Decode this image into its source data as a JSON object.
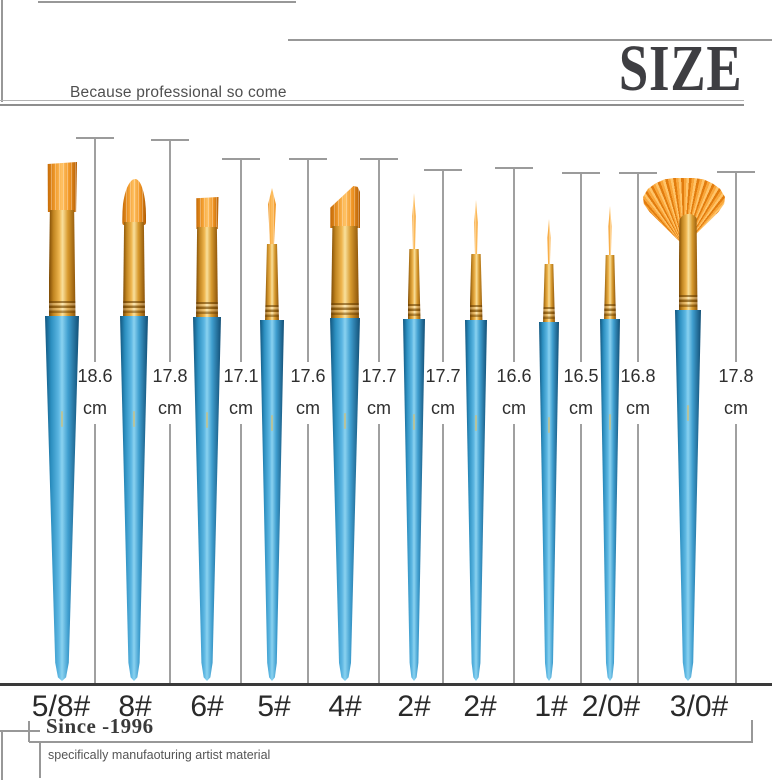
{
  "page": {
    "title": "SIZE",
    "tagline": "Because professional so come"
  },
  "measurement": {
    "unit": "cm"
  },
  "brushes": [
    {
      "label": "5/8#",
      "size_cm": "18.6",
      "tip_shape": "flat-wash"
    },
    {
      "label": "8#",
      "size_cm": "17.8",
      "tip_shape": "filbert"
    },
    {
      "label": "6#",
      "size_cm": "17.1",
      "tip_shape": "flat-bright"
    },
    {
      "label": "5#",
      "size_cm": "17.6",
      "tip_shape": "round-pointed"
    },
    {
      "label": "4#",
      "size_cm": "17.7",
      "tip_shape": "angled"
    },
    {
      "label": "2#",
      "size_cm": "17.7",
      "tip_shape": "round-small"
    },
    {
      "label": "2#",
      "size_cm": "16.6",
      "tip_shape": "round-small"
    },
    {
      "label": "1#",
      "size_cm": "16.5",
      "tip_shape": "liner"
    },
    {
      "label": "2/0#",
      "size_cm": "16.8",
      "tip_shape": "detail-round"
    },
    {
      "label": "3/0#",
      "size_cm": "17.8",
      "tip_shape": "fan"
    }
  ],
  "footer": {
    "since": "Since -1996",
    "subtitle": "specifically manufaoturing artist material"
  },
  "colors": {
    "handle_blue": "#2e93c5",
    "ferrule_gold": "#d9992c",
    "bristle_orange": "#f59a2b",
    "measure_line_gray": "#9b9b9b",
    "baseline_dark": "#3a3a3a",
    "text_dark": "#2f2f2f"
  }
}
